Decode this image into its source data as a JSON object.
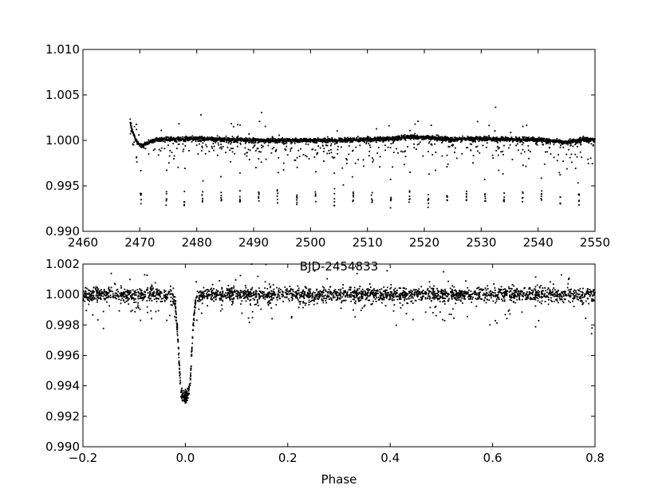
{
  "chart_data": [
    {
      "type": "scatter",
      "title": "",
      "xlabel": "BJD-2454833",
      "ylabel": "",
      "xlim": [
        2460,
        2550
      ],
      "ylim": [
        0.99,
        1.01
      ],
      "xticks": [
        "2460",
        "2470",
        "2480",
        "2490",
        "2500",
        "2510",
        "2520",
        "2530",
        "2540",
        "2550"
      ],
      "yticks": [
        "0.990",
        "0.995",
        "1.000",
        "1.005",
        "1.010"
      ],
      "grid": false,
      "legend": "none",
      "marker_color": "#000000",
      "series": [
        {
          "description": "baseline flux",
          "x": [
            2468.3,
            2468.6,
            2469.0,
            2469.5,
            2470.0,
            2470.5,
            2471.0,
            2472.0,
            2473.0,
            2475.0,
            2480.0,
            2485.0,
            2490.0,
            2495.0,
            2500.0,
            2505.0,
            2510.0,
            2515.0,
            2518.0,
            2521.0,
            2525.0,
            2530.0,
            2535.0,
            2540.0,
            2543.0,
            2545.0,
            2548.0,
            2550.0
          ],
          "y": [
            1.002,
            1.0012,
            1.0005,
            0.9998,
            0.9995,
            0.9994,
            0.9996,
            0.9999,
            1.0001,
            1.0001,
            1.0002,
            1.0001,
            1.0,
            1.0,
            1.0,
            1.0,
            1.0001,
            1.0002,
            1.0004,
            1.0003,
            1.0001,
            1.0002,
            1.0001,
            1.0001,
            0.9999,
            0.9998,
            1.0001,
            1.0
          ]
        },
        {
          "description": "transit points",
          "x": [
            2470.2,
            2474.7,
            2477.8,
            2481.0,
            2484.3,
            2487.6,
            2490.9,
            2494.2,
            2497.6,
            2500.9,
            2504.2,
            2507.5,
            2510.8,
            2514.1,
            2517.4,
            2520.7,
            2524.0,
            2527.4,
            2530.7,
            2534.0,
            2537.3,
            2540.6,
            2543.9,
            2547.2
          ],
          "y": [
            0.9935,
            0.9936,
            0.9934,
            0.9937,
            0.9935,
            0.9936,
            0.9935,
            0.9938,
            0.9937,
            0.9936,
            0.9935,
            0.9937,
            0.9936,
            0.9935,
            0.9936,
            0.9935,
            0.9937,
            0.9938,
            0.9936,
            0.9935,
            0.9936,
            0.9937,
            0.9935,
            0.9936
          ]
        }
      ]
    },
    {
      "type": "scatter",
      "title": "",
      "xlabel": "Phase",
      "ylabel": "",
      "xlim": [
        -0.2,
        0.8
      ],
      "ylim": [
        0.99,
        1.002
      ],
      "xticks": [
        "−0.2",
        "0.0",
        "0.2",
        "0.4",
        "0.6",
        "0.8"
      ],
      "yticks": [
        "0.990",
        "0.992",
        "0.994",
        "0.996",
        "0.998",
        "1.000",
        "1.002"
      ],
      "grid": false,
      "legend": "none",
      "marker_color": "#000000",
      "series": [
        {
          "description": "phase-folded flux",
          "x": [
            -0.2,
            -0.1,
            -0.03,
            -0.02,
            -0.015,
            -0.012,
            -0.01,
            -0.008,
            -0.005,
            0.0,
            0.005,
            0.008,
            0.01,
            0.012,
            0.015,
            0.02,
            0.03,
            0.1,
            0.2,
            0.4,
            0.6,
            0.8
          ],
          "y": [
            1.0,
            1.0,
            1.0,
            0.9995,
            0.9975,
            0.9955,
            0.9942,
            0.9936,
            0.9933,
            0.9932,
            0.9934,
            0.9938,
            0.9945,
            0.996,
            0.9978,
            0.9996,
            1.0,
            1.0,
            1.0,
            1.0,
            1.0,
            1.0
          ]
        }
      ]
    }
  ]
}
